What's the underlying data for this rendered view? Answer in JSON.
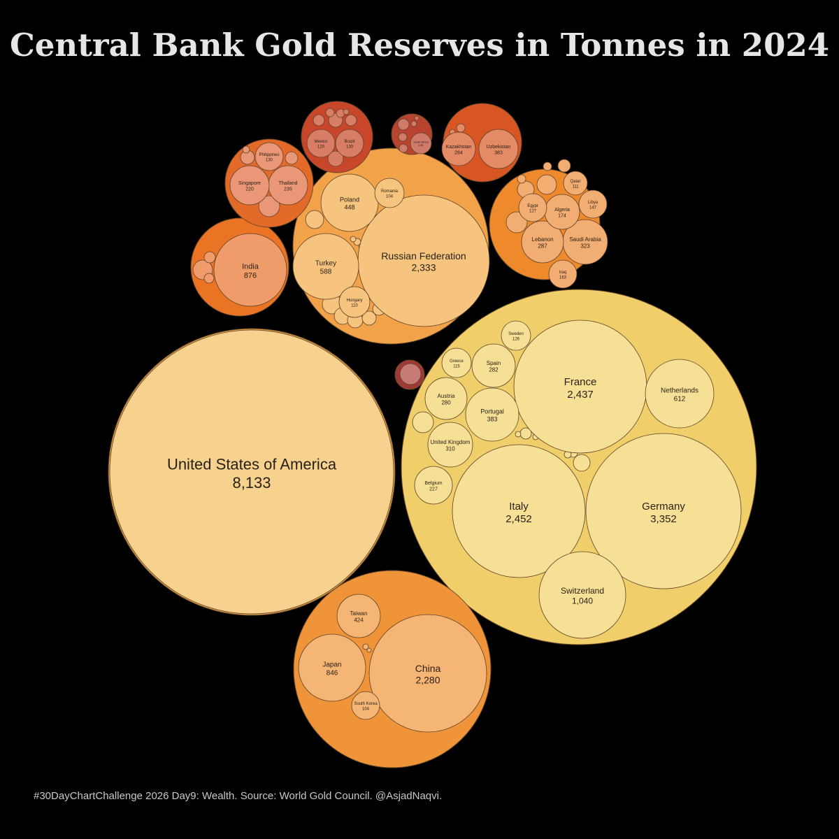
{
  "title": "Central Bank Gold Reserves in Tonnes in 2024",
  "caption": "#30DayChartChallenge 2026 Day9: Wealth. Source: World Gold Council. @AsjadNaqvi.",
  "chart_data": {
    "type": "packed-bubble",
    "unit": "tonnes",
    "groups": [
      {
        "key": "north-america",
        "color": "#e3a548",
        "fill": "#f7d28e",
        "values": [
          {
            "name": "United States of America",
            "value": "8,133"
          }
        ]
      },
      {
        "key": "europe",
        "color": "#f0cf6a",
        "fill": "#f6e096",
        "values": [
          {
            "name": "Germany",
            "value": "3,352"
          },
          {
            "name": "Italy",
            "value": "2,452"
          },
          {
            "name": "France",
            "value": "2,437"
          },
          {
            "name": "Switzerland",
            "value": "1,040"
          },
          {
            "name": "Netherlands",
            "value": "612"
          },
          {
            "name": "Portugal",
            "value": "383"
          },
          {
            "name": "United Kingdom",
            "value": "310"
          },
          {
            "name": "Spain",
            "value": "282"
          },
          {
            "name": "Austria",
            "value": "280"
          },
          {
            "name": "Belgium",
            "value": "227"
          },
          {
            "name": "Sweden",
            "value": "126"
          },
          {
            "name": "Greece",
            "value": "115"
          }
        ]
      },
      {
        "key": "eastern-europe",
        "color": "#f2a34a",
        "fill": "#f6c47f",
        "values": [
          {
            "name": "Russian Federation",
            "value": "2,333"
          },
          {
            "name": "Turkey",
            "value": "588"
          },
          {
            "name": "Poland",
            "value": "448"
          },
          {
            "name": "Hungary",
            "value": "110"
          },
          {
            "name": "Romania",
            "value": "104"
          }
        ]
      },
      {
        "key": "east-asia",
        "color": "#f0943a",
        "fill": "#f5b575",
        "values": [
          {
            "name": "China",
            "value": "2,280"
          },
          {
            "name": "Japan",
            "value": "846"
          },
          {
            "name": "Taiwan",
            "value": "424"
          },
          {
            "name": "South Korea",
            "value": "104"
          }
        ]
      },
      {
        "key": "south-asia",
        "color": "#ea7424",
        "fill": "#ef9c6a",
        "values": [
          {
            "name": "India",
            "value": "876"
          }
        ]
      },
      {
        "key": "middle-east-africa",
        "color": "#ef8a2c",
        "fill": "#f2ad72",
        "values": [
          {
            "name": "Saudi Arabia",
            "value": "323"
          },
          {
            "name": "Lebanon",
            "value": "287"
          },
          {
            "name": "Algeria",
            "value": "174"
          },
          {
            "name": "Iraq",
            "value": "163"
          },
          {
            "name": "Libya",
            "value": "147"
          },
          {
            "name": "Egypt",
            "value": "127"
          },
          {
            "name": "Qatar",
            "value": "111"
          }
        ]
      },
      {
        "key": "southeast-asia",
        "color": "#e46a2a",
        "fill": "#ea9777",
        "values": [
          {
            "name": "Thailand",
            "value": "235"
          },
          {
            "name": "Singapore",
            "value": "220"
          },
          {
            "name": "Philippines",
            "value": "130"
          }
        ]
      },
      {
        "key": "latin-america",
        "color": "#c8462a",
        "fill": "#d97e66",
        "values": [
          {
            "name": "Brazil",
            "value": "130"
          },
          {
            "name": "Mexico",
            "value": "120"
          }
        ]
      },
      {
        "key": "central-asia",
        "color": "#d85624",
        "fill": "#e58a66",
        "values": [
          {
            "name": "Uzbekistan",
            "value": "383"
          },
          {
            "name": "Kazakhstan",
            "value": "284"
          }
        ]
      },
      {
        "key": "sub-saharan-africa",
        "color": "#b8432e",
        "fill": "#d07a6a",
        "values": [
          {
            "name": "South Africa",
            "value": "125"
          }
        ]
      },
      {
        "key": "oceania",
        "color": "#9e3a34",
        "fill": "#c77a76",
        "values": []
      }
    ]
  }
}
